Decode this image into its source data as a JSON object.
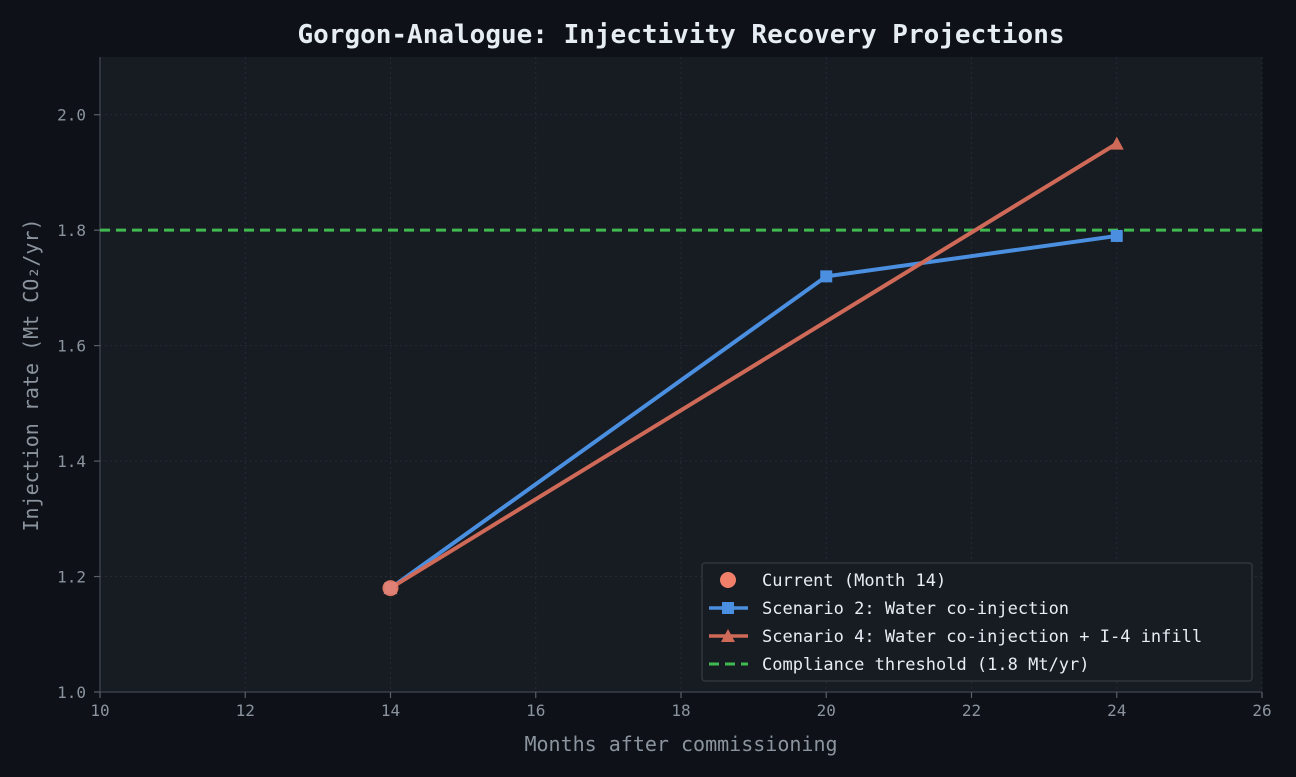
{
  "chart_data": {
    "type": "line",
    "title": "Gorgon-Analogue: Injectivity Recovery Projections",
    "xlabel": "Months after commissioning",
    "ylabel": "Injection rate (Mt CO₂/yr)",
    "xlim": [
      10,
      26
    ],
    "ylim": [
      1.0,
      2.1
    ],
    "x_ticks": [
      "10",
      "12",
      "14",
      "16",
      "18",
      "20",
      "22",
      "24",
      "26"
    ],
    "y_ticks": [
      "1.0",
      "1.2",
      "1.4",
      "1.6",
      "1.8",
      "2.0"
    ],
    "grid": true,
    "legend_position": "lower-right",
    "series": [
      {
        "name": "Scenario 2: Water co-injection",
        "color": "#4a8fe0",
        "marker": "square",
        "points": [
          {
            "x": 14,
            "y": 1.18
          },
          {
            "x": 20,
            "y": 1.72
          },
          {
            "x": 24,
            "y": 1.79
          }
        ]
      },
      {
        "name": "Scenario 4: Water co-injection + I-4 infill",
        "color": "#d06a58",
        "marker": "triangle",
        "points": [
          {
            "x": 14,
            "y": 1.18
          },
          {
            "x": 24,
            "y": 1.95
          }
        ]
      }
    ],
    "current_point": {
      "name": "Current (Month 14)",
      "x": 14,
      "y": 1.18,
      "color": "#f0806a"
    },
    "threshold": {
      "name": "Compliance threshold (1.8 Mt/yr)",
      "y": 1.8,
      "color": "#3fb950"
    }
  }
}
